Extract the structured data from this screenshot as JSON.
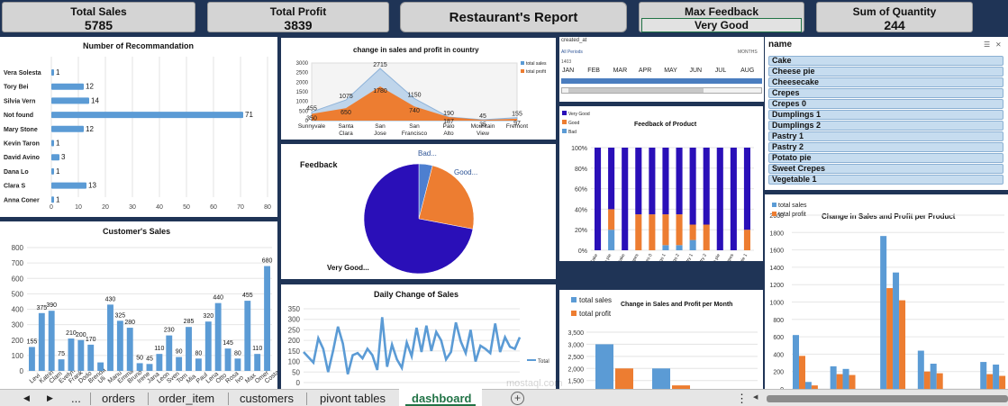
{
  "kpis": {
    "total_sales": {
      "label": "Total Sales",
      "value": "5785"
    },
    "total_profit": {
      "label": "Total Profit",
      "value": "3839"
    },
    "report_title": "Restaurant's Report",
    "max_feedback": {
      "label": "Max Feedback",
      "value": "Very Good"
    },
    "sum_quantity": {
      "label": "Sum of Quantity",
      "value": "244"
    }
  },
  "colors": {
    "navy": "#1f3456",
    "blue": "#5b9bd5",
    "orange": "#ed7d31",
    "indigo": "#2a0fb8",
    "lightblue": "#c6dcef"
  },
  "recommendation": {
    "title": "Number of Recommandation",
    "chart_data": {
      "type": "bar",
      "orientation": "horizontal",
      "categories": [
        "Vera Solesta",
        "Tory Bei",
        "Silvia Vern",
        "Not found",
        "Mary Stone",
        "Kevin Taron",
        "David Avino",
        "Dana Lo",
        "Clara S",
        "Anna Coner"
      ],
      "values": [
        1,
        12,
        14,
        71,
        12,
        1,
        3,
        1,
        13,
        1
      ],
      "xlim": [
        0,
        80
      ],
      "xticks": [
        "0",
        "10",
        "20",
        "30",
        "40",
        "50",
        "60",
        "70",
        "80"
      ]
    }
  },
  "customer_sales": {
    "title": "Customer's Sales",
    "chart_data": {
      "type": "bar",
      "values": [
        155,
        375,
        390,
        75,
        210,
        200,
        170,
        55,
        430,
        325,
        280,
        50,
        45,
        110,
        230,
        90,
        285,
        80,
        320,
        440,
        145,
        80,
        455,
        110,
        680
      ],
      "labels": [
        "155",
        "375",
        "390",
        "75",
        "210",
        "200",
        "170",
        "",
        "430",
        "325",
        "280",
        "50",
        "45",
        "110",
        "230",
        "90",
        "285",
        "80",
        "320",
        "440",
        "145",
        "80",
        "455",
        "110",
        "680"
      ],
      "categories_visible": [
        "Levi",
        "Katrin",
        "Clam",
        "Evelyn",
        "Frank",
        "Dodo",
        "Brenda",
        "Uli",
        "Manu",
        "Emma",
        "Bruno",
        "Irene",
        "Jana",
        "Leon",
        "Sven",
        "Tom",
        "Mia",
        "Paul",
        "Lena",
        "Otto",
        "Rosa",
        "Ivo",
        "Max",
        "Omer",
        "Costa"
      ],
      "ylim": [
        0,
        800
      ],
      "yticks": [
        "0",
        "100",
        "200",
        "300",
        "400",
        "500",
        "600",
        "700",
        "800"
      ]
    }
  },
  "country": {
    "title": "change in sales and profit in country",
    "chart_data": {
      "type": "area",
      "categories": [
        "Sunnyvale",
        "Santa Clara",
        "San Jose",
        "San Francisco",
        "Palo Alto",
        "Mountain View",
        "Fremont"
      ],
      "series": [
        {
          "name": "total sales",
          "values": [
            455,
            1075,
            2715,
            1150,
            190,
            45,
            155
          ]
        },
        {
          "name": "total profit",
          "values": [
            350,
            650,
            1780,
            740,
            187,
            35,
            97
          ]
        }
      ],
      "ylim": [
        0,
        3000
      ],
      "yticks": [
        "0",
        "500",
        "1000",
        "1500",
        "2000",
        "2500",
        "3000"
      ]
    }
  },
  "feedback_pie": {
    "title": "Feedback",
    "chart_data": {
      "type": "pie",
      "labels": [
        "Bad...",
        "Good...",
        "Very Good..."
      ],
      "values": [
        4,
        24,
        72
      ]
    }
  },
  "daily": {
    "title": "Daily Change of Sales",
    "legend": "Total",
    "chart_data": {
      "type": "line",
      "values": [
        145,
        120,
        95,
        210,
        160,
        50,
        150,
        265,
        185,
        40,
        130,
        140,
        115,
        160,
        130,
        60,
        310,
        75,
        180,
        110,
        70,
        190,
        125,
        260,
        145,
        270,
        150,
        240,
        200,
        110,
        145,
        285,
        195,
        140,
        250,
        100,
        175,
        160,
        140,
        280,
        145,
        215,
        170,
        160,
        215
      ],
      "ylim": [
        0,
        350
      ],
      "yticks": [
        "0",
        "50",
        "100",
        "150",
        "200",
        "250",
        "300",
        "350"
      ]
    }
  },
  "timeline": {
    "field": "created_at",
    "all_periods": "All Periods",
    "unit": "MONTHS",
    "year": "1403",
    "months": [
      "JAN",
      "FEB",
      "MAR",
      "APR",
      "MAY",
      "JUN",
      "JUL",
      "AUG"
    ]
  },
  "feedback_product": {
    "title": "Feedback of Product",
    "legend": [
      "Very Good",
      "Good",
      "Bad"
    ],
    "chart_data": {
      "type": "bar",
      "stacked": true,
      "categories": [
        "Cake",
        "Cheese pie",
        "Cheesecake",
        "Crepes",
        "Crepes 0",
        "Dumplings 1",
        "Dumplings 2",
        "Pastry 1",
        "Pastry 2",
        "Potato pie",
        "Sweet Crepes",
        "Vegetable 1"
      ],
      "series": [
        {
          "name": "Bad",
          "values": [
            0,
            20,
            0,
            0,
            0,
            5,
            5,
            10,
            0,
            0,
            0,
            0
          ]
        },
        {
          "name": "Good",
          "values": [
            0,
            20,
            0,
            35,
            35,
            30,
            30,
            15,
            25,
            0,
            0,
            20
          ]
        },
        {
          "name": "Very Good",
          "values": [
            100,
            60,
            100,
            65,
            65,
            65,
            65,
            75,
            75,
            100,
            100,
            80
          ]
        }
      ],
      "ylim": [
        0,
        100
      ],
      "yticks": [
        "0%",
        "20%",
        "40%",
        "60%",
        "80%",
        "100%"
      ]
    }
  },
  "month_chart": {
    "title": "Change in Sales and Profit per Month",
    "chart_data": {
      "type": "bar",
      "series": [
        {
          "name": "total sales",
          "values": [
            3000,
            2000
          ]
        },
        {
          "name": "total profit",
          "values": [
            2000,
            1300
          ]
        }
      ],
      "ylim": [
        0,
        3500
      ],
      "yticks": [
        "3,500",
        "3,000",
        "2,500",
        "2,000",
        "1,500"
      ]
    }
  },
  "slicer": {
    "title": "name",
    "items": [
      "Cake",
      "Cheese pie",
      "Cheesecake",
      "Crepes",
      "Crepes 0",
      "Dumplings 1",
      "Dumplings 2",
      "Pastry 1",
      "Pastry 2",
      "Potato pie",
      "Sweet Crepes",
      "Vegetable 1"
    ]
  },
  "product_chart": {
    "title": "Change in Sales and Profit per Product",
    "chart_data": {
      "type": "bar",
      "series": [
        {
          "name": "total sales",
          "values": [
            620,
            80,
            0,
            260,
            230,
            0,
            0,
            1760,
            1340,
            0,
            440,
            290,
            0,
            0,
            0,
            310,
            280
          ]
        },
        {
          "name": "total profit",
          "values": [
            380,
            40,
            0,
            170,
            160,
            0,
            0,
            1160,
            1020,
            0,
            200,
            180,
            0,
            0,
            0,
            170,
            150
          ]
        }
      ],
      "ylim": [
        0,
        2000
      ],
      "yticks": [
        "0",
        "200",
        "400",
        "600",
        "800",
        "1000",
        "1200",
        "1400",
        "1600",
        "1800",
        "2000"
      ]
    }
  },
  "sheet_tabs": {
    "items": [
      "orders",
      "order_item",
      "customers",
      "pivont tables",
      "dashboard"
    ],
    "active": "dashboard",
    "ellipsis": "..."
  },
  "watermark": "mostaql.com"
}
